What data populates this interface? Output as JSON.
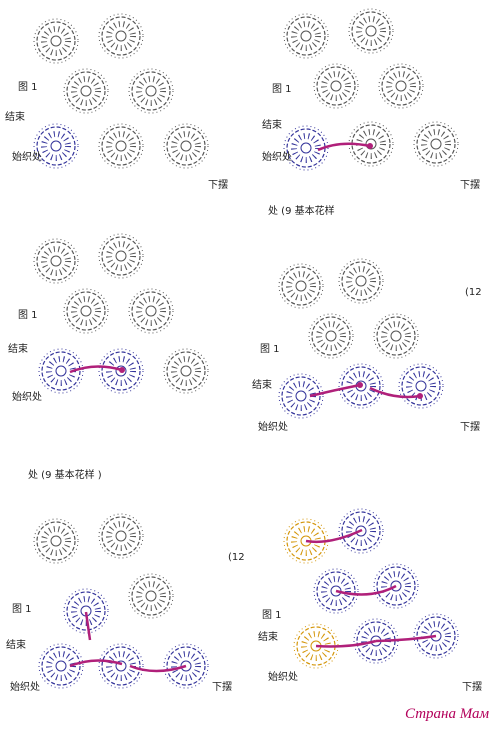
{
  "panels": [
    {
      "fig": "图 1",
      "end": "结束",
      "start": "始织处",
      "hem": "下摆"
    },
    {
      "fig": "图 1",
      "end": "结束",
      "start": "始织处",
      "hem": "下摆",
      "caption": "处    (9 基本花样"
    },
    {
      "fig": "图 1",
      "end": "结束",
      "start": "始织处"
    },
    {
      "fig": "图 1",
      "end": "结束",
      "start": "始织处",
      "hem": "下摆",
      "side": "(12"
    },
    {
      "fig": "图 1",
      "end": "结束",
      "start": "始织处",
      "hem": "下摆",
      "side": "(12"
    },
    {
      "fig": "图 1",
      "end": "结束",
      "start": "始织处",
      "hem": "下摆"
    }
  ],
  "middle_caption": "处        (9 基本花样 )",
  "watermark": "Страна Мам"
}
